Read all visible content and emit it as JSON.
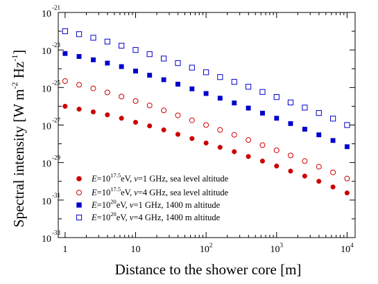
{
  "chart_data": {
    "type": "scatter",
    "xscale": "log",
    "yscale": "log",
    "xlim": [
      0.8,
      13000
    ],
    "ylim": [
      1e-33,
      1e-21
    ],
    "xlabel": "Distance to the shower core [m]",
    "ylabel": {
      "text": "Spectral intensity [W m",
      "sup": "-2",
      "text2": " Hz",
      "sup2": "-1",
      "close": "]"
    },
    "xticks": [
      {
        "value": 1,
        "base": "1",
        "exp": ""
      },
      {
        "value": 10,
        "base": "10",
        "exp": ""
      },
      {
        "value": 100,
        "base": "10",
        "exp": "2"
      },
      {
        "value": 1000,
        "base": "10",
        "exp": "3"
      },
      {
        "value": 10000,
        "base": "10",
        "exp": "4"
      }
    ],
    "yticks": [
      {
        "value": 1e-33,
        "base": "10",
        "exp": "-33"
      },
      {
        "value": 1e-31,
        "base": "10",
        "exp": "-31"
      },
      {
        "value": 1e-29,
        "base": "10",
        "exp": "-29"
      },
      {
        "value": 1e-27,
        "base": "10",
        "exp": "-27"
      },
      {
        "value": 1e-25,
        "base": "10",
        "exp": "-25"
      },
      {
        "value": 1e-23,
        "base": "10",
        "exp": "-23"
      },
      {
        "value": 1e-21,
        "base": "10",
        "exp": "-21"
      }
    ],
    "grid": false,
    "legend_position": "bottom-left",
    "x": [
      1,
      1.58,
      2.51,
      3.98,
      6.31,
      10,
      15.8,
      25.1,
      39.8,
      63.1,
      100,
      158,
      251,
      398,
      631,
      1000,
      1580,
      2510,
      3980,
      6310,
      10000
    ],
    "series": [
      {
        "name": "E=10^17.5 eV, ν=1 GHz, sea level altitude",
        "legend": {
          "p1": "E",
          "p2": "=10",
          "sup": "17.5",
          "p3": "eV, ",
          "p4": "ν",
          "p5": "=1 GHz, sea level altitude"
        },
        "color": "#cc0000",
        "marker": "circle",
        "filled": true,
        "values": [
          1e-26,
          7e-27,
          5e-27,
          3.5e-27,
          2.3e-27,
          1.4e-27,
          9e-28,
          5.5e-28,
          3.2e-28,
          1.9e-28,
          1.1e-28,
          6.5e-29,
          3.8e-29,
          2.1e-29,
          1.2e-29,
          6.5e-30,
          3.5e-30,
          1.9e-30,
          1e-30,
          5e-31,
          2.4e-31
        ]
      },
      {
        "name": "E=10^17.5 eV, ν=4 GHz, sea level altitude",
        "legend": {
          "p1": "E",
          "p2": "=10",
          "sup": "17.5",
          "p3": "eV, ",
          "p4": "ν",
          "p5": "=4 GHz, sea level altitude"
        },
        "color": "#cc0000",
        "marker": "circle",
        "filled": false,
        "values": [
          2.2e-25,
          1.4e-25,
          9e-26,
          5.5e-26,
          3.3e-26,
          1.9e-26,
          1.1e-26,
          6e-27,
          3.3e-27,
          1.8e-27,
          1e-27,
          5.5e-28,
          3e-28,
          1.6e-28,
          8.5e-29,
          4.5e-29,
          2.4e-29,
          1.2e-29,
          6e-30,
          3e-30,
          1.4e-30
        ]
      },
      {
        "name": "E=10^20 eV, ν=1 GHz, 1400 m altitude",
        "legend": {
          "p1": "E",
          "p2": "=10",
          "sup": "20",
          "p3": "eV, ",
          "p4": "ν",
          "p5": "=1 GHz, 1400 m altitude"
        },
        "color": "#0000cc",
        "marker": "square",
        "filled": true,
        "values": [
          6.5e-24,
          4.5e-24,
          3e-24,
          2e-24,
          1.3e-24,
          7.5e-25,
          4.5e-25,
          2.6e-25,
          1.5e-25,
          8.5e-26,
          4.8e-26,
          2.7e-26,
          1.5e-26,
          8e-27,
          4.3e-27,
          2.3e-27,
          1.2e-27,
          6e-28,
          3e-28,
          1.5e-28,
          7e-29
        ]
      },
      {
        "name": "E=10^20 eV, ν=4 GHz, 1400 m altitude",
        "legend": {
          "p1": "E",
          "p2": "=10",
          "sup": "20",
          "p3": "eV, ",
          "p4": "ν",
          "p5": "=4 GHz, 1400 m altitude"
        },
        "color": "#0000cc",
        "marker": "square",
        "filled": false,
        "values": [
          1e-22,
          7e-23,
          4.5e-23,
          2.8e-23,
          1.7e-23,
          1e-23,
          6e-24,
          3.5e-24,
          2e-24,
          1.15e-24,
          6.5e-25,
          3.6e-25,
          2e-25,
          1.1e-25,
          5.8e-26,
          3.1e-26,
          1.6e-26,
          8.5e-27,
          4.4e-27,
          2.2e-27,
          1e-27
        ]
      }
    ]
  }
}
